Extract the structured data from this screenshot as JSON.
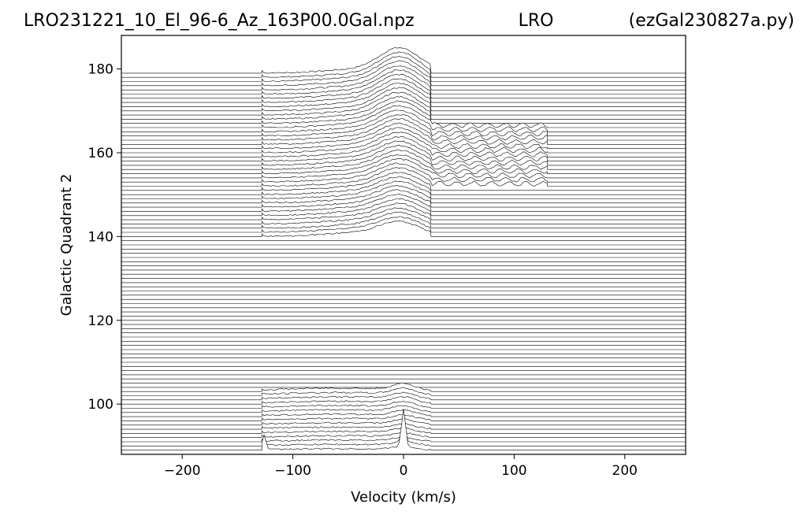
{
  "chart_data": {
    "type": "line",
    "title_left": "LRO231221_10_El_96-6_Az_163P00.0Gal.npz",
    "title_center": "LRO",
    "title_right": "(ezGal230827a.py)",
    "xlabel": "Velocity (km/s)",
    "ylabel": "Galactic Quadrant 2",
    "xlim": [
      -255,
      255
    ],
    "ylim": [
      88,
      188
    ],
    "xticks": [
      -200,
      -100,
      0,
      100,
      200
    ],
    "xtick_labels": [
      "−200",
      "−100",
      "0",
      "100",
      "200"
    ],
    "yticks": [
      100,
      120,
      140,
      160,
      180
    ],
    "ytick_labels": [
      "100",
      "120",
      "140",
      "160",
      "180"
    ],
    "trace_baselines": {
      "start": 89,
      "end": 179,
      "step": 1
    },
    "groups": [
      {
        "lon_range": [
          89,
          103
        ],
        "vel_range": [
          -128,
          25
        ],
        "peak_velocity": 0,
        "peak_height": 6,
        "spike_velocities": [
          -126,
          0,
          60,
          82,
          122
        ]
      },
      {
        "lon_range": [
          140,
          179
        ],
        "vel_range": [
          -128,
          130
        ],
        "peak_velocity": -3,
        "peak_height": 7
      }
    ],
    "grid": false,
    "legend": "none"
  }
}
